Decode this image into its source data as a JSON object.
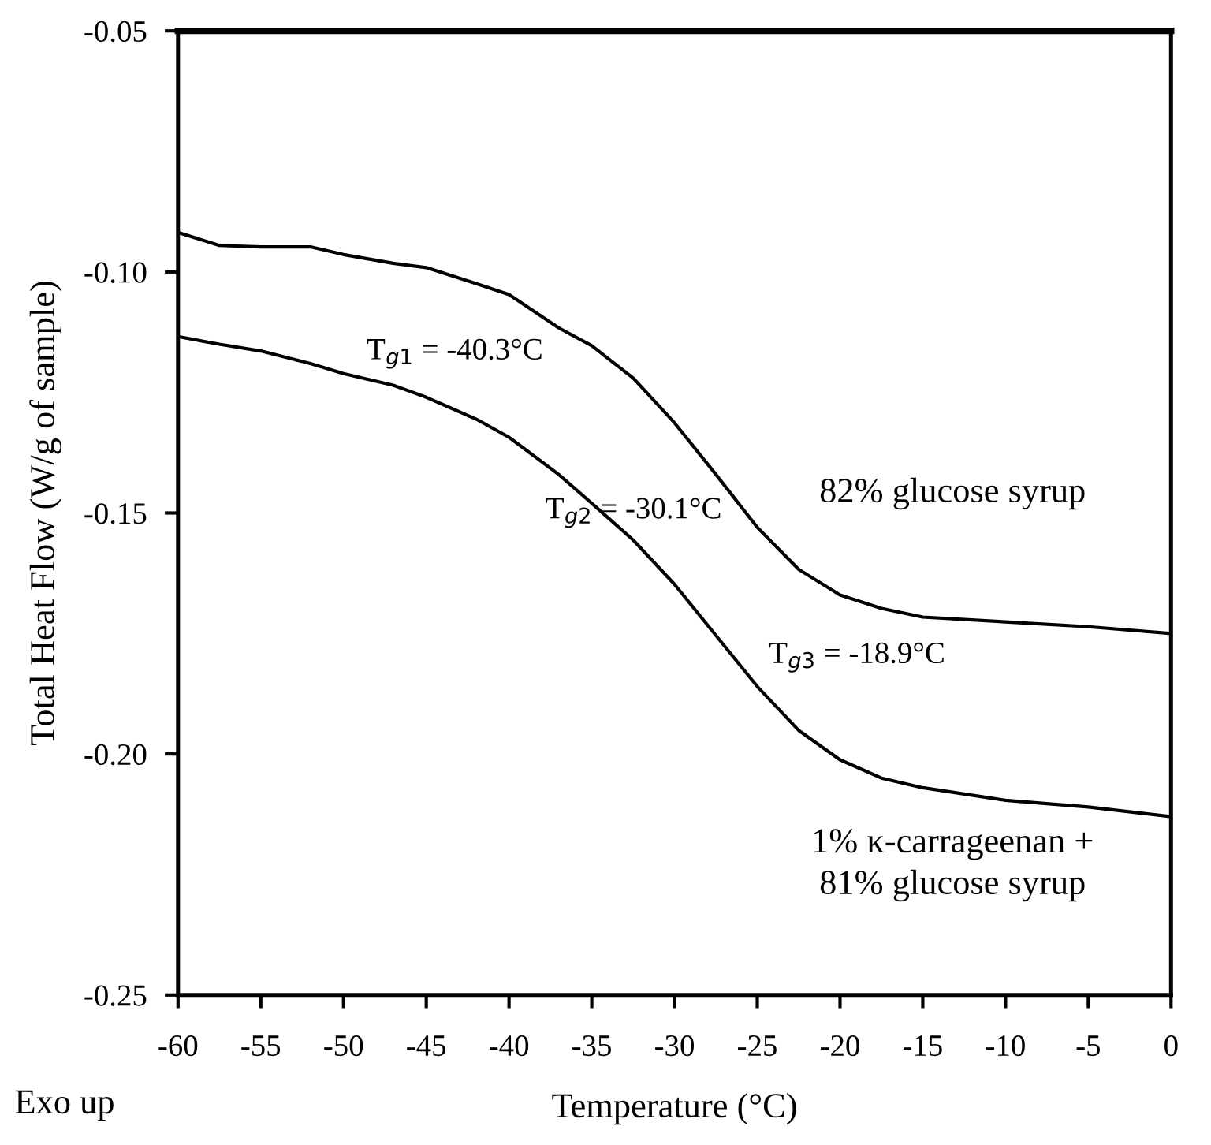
{
  "chart_data": {
    "type": "line",
    "xlabel": "Temperature (°C)",
    "ylabel": "Total Heat Flow (W/g of sample)",
    "x": [
      -60,
      -57.5,
      -55,
      -52,
      -50,
      -47,
      -45,
      -42,
      -40,
      -37,
      -35,
      -32.5,
      -30,
      -27.5,
      -25,
      -22.5,
      -20,
      -17.5,
      -15,
      -10,
      -5,
      0
    ],
    "series": [
      {
        "name": "82% glucose syrup",
        "color": "#000000",
        "values": [
          -0.0918,
          -0.0945,
          -0.0948,
          -0.0948,
          -0.0964,
          -0.0982,
          -0.0991,
          -0.1024,
          -0.1047,
          -0.1116,
          -0.1153,
          -0.122,
          -0.1313,
          -0.142,
          -0.153,
          -0.1617,
          -0.167,
          -0.1698,
          -0.1716,
          -0.1726,
          -0.1736,
          -0.175
        ]
      },
      {
        "name": "1% κ-carrageenan +\n81% glucose syrup",
        "color": "#000000",
        "values": [
          -0.1134,
          -0.115,
          -0.1164,
          -0.119,
          -0.1211,
          -0.1235,
          -0.126,
          -0.1305,
          -0.1343,
          -0.142,
          -0.148,
          -0.1556,
          -0.1648,
          -0.1754,
          -0.186,
          -0.1951,
          -0.2012,
          -0.205,
          -0.207,
          -0.2096,
          -0.211,
          -0.213
        ]
      }
    ],
    "xlim": [
      -60,
      0
    ],
    "ylim": [
      -0.25,
      -0.05
    ],
    "xticks": [
      -60,
      -55,
      -50,
      -45,
      -40,
      -35,
      -30,
      -25,
      -20,
      -15,
      -10,
      -5,
      0
    ],
    "yticks": [
      {
        "value": -0.25,
        "label": "-0.25"
      },
      {
        "value": -0.2,
        "label": "-0.20"
      },
      {
        "value": -0.15,
        "label": "-0.15"
      },
      {
        "value": -0.1,
        "label": "-0.10"
      },
      {
        "value": -0.05,
        "label": "-0.05"
      }
    ],
    "grid": false,
    "legend": false,
    "marker": "none",
    "line_style": "solid",
    "annotations": [
      "T$_{g1}$ = -40.3°C",
      "T$_{g2}$ = -30.1°C",
      "T$_{g3}$ = -18.9°C",
      "Exo up"
    ]
  }
}
